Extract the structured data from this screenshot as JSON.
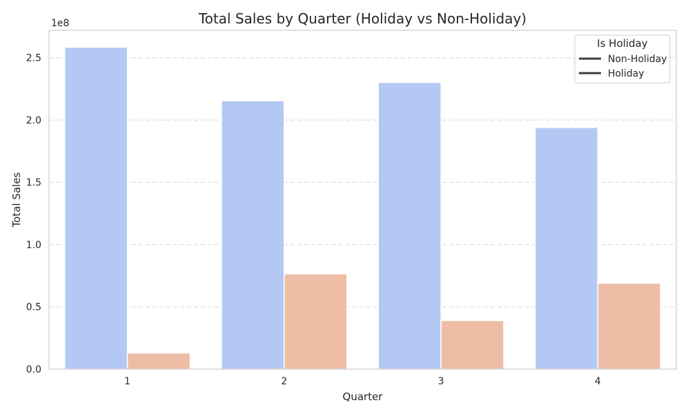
{
  "chart_data": {
    "type": "bar",
    "title": "Total Sales by Quarter (Holiday vs Non-Holiday)",
    "xlabel": "Quarter",
    "ylabel": "Total Sales",
    "y_offset_label": "1e8",
    "categories": [
      "1",
      "2",
      "3",
      "4"
    ],
    "series": [
      {
        "name": "Non-Holiday",
        "color": "#b3c9f4",
        "values": [
          2.585,
          2.155,
          2.302,
          1.94
        ]
      },
      {
        "name": "Holiday",
        "color": "#eebda5",
        "values": [
          0.13,
          0.765,
          0.39,
          0.69
        ]
      }
    ],
    "ylim": [
      0,
      2.72
    ],
    "yticks": [
      0.0,
      0.5,
      1.0,
      1.5,
      2.0,
      2.5
    ],
    "ytick_labels": [
      "0.0",
      "0.5",
      "1.0",
      "1.5",
      "2.0",
      "2.5"
    ],
    "grid": "y-dashed",
    "legend": {
      "title": "Is Holiday",
      "placement": "top-right",
      "entries": [
        "Non-Holiday",
        "Holiday"
      ],
      "line_color": "#3d3d3d"
    }
  }
}
